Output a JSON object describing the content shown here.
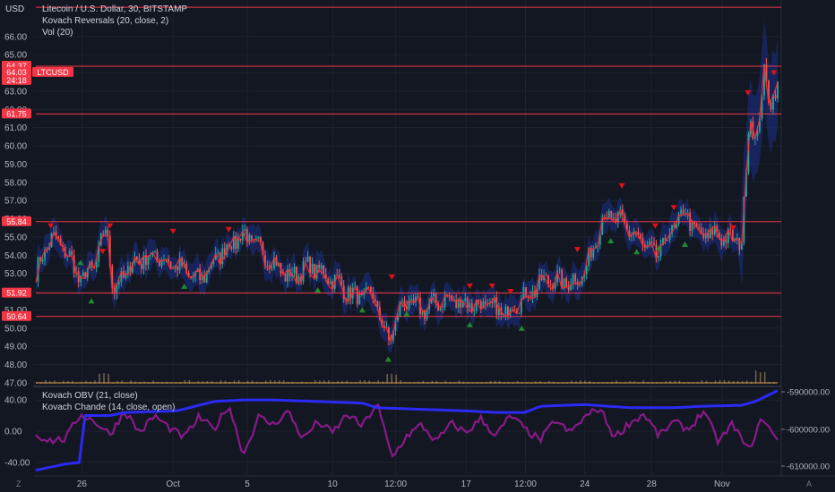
{
  "header": {
    "currency": "USD",
    "title": "Litecoin / U.S. Dollar, 30, BITSTAMP",
    "indicator_1": "Kovach Reversals (20, close, 2)",
    "indicator_2": "Vol (20)",
    "panel_2_line_1": "Kovach OBV (21, close)",
    "panel_2_line_2": "Kovach Chande (14, close, open)"
  },
  "price_badges": [
    {
      "label": "64.37",
      "value": 64.37,
      "color": "#f23645"
    },
    {
      "label": "64.03",
      "sub": "24:18",
      "value": 64.03,
      "color": "#f23645"
    },
    {
      "label": "61.75",
      "value": 61.75,
      "color": "#f23645"
    },
    {
      "label": "55.84",
      "value": 55.84,
      "color": "#f23645"
    },
    {
      "label": "51.92",
      "value": 51.92,
      "color": "#f23645"
    },
    {
      "label": "50.64",
      "value": 50.64,
      "color": "#f23645"
    }
  ],
  "symbol_tag": "LTCUSD",
  "bottom_left": "Z",
  "bottom_right": "A",
  "chart_data": [
    {
      "type": "candlestick",
      "title": "Litecoin / U.S. Dollar, 30, BITSTAMP",
      "ylabel": "USD",
      "ylim": [
        46.8,
        68.0
      ],
      "y_ticks": [
        "66.00",
        "65.00",
        "64.00",
        "63.00",
        "62.00",
        "61.00",
        "60.00",
        "59.00",
        "58.00",
        "57.00",
        "56.00",
        "55.00",
        "54.00",
        "53.00",
        "52.00",
        "51.00",
        "50.00",
        "49.00",
        "48.00",
        "47.00"
      ],
      "x_tick_labels": [
        "26",
        "Oct",
        "5",
        "10",
        "12:00",
        "17",
        "12:00",
        "24",
        "28",
        "Nov"
      ],
      "horizontal_levels": [
        67.6,
        64.37,
        61.75,
        55.84,
        51.92,
        50.64
      ],
      "price_path": [
        [
          0,
          53.0
        ],
        [
          0.02,
          55.0
        ],
        [
          0.04,
          54.3
        ],
        [
          0.06,
          52.6
        ],
        [
          0.08,
          53.5
        ],
        [
          0.095,
          55.6
        ],
        [
          0.105,
          52.0
        ],
        [
          0.13,
          53.6
        ],
        [
          0.16,
          54.0
        ],
        [
          0.19,
          53.4
        ],
        [
          0.22,
          52.6
        ],
        [
          0.25,
          54.2
        ],
        [
          0.28,
          55.2
        ],
        [
          0.31,
          54.0
        ],
        [
          0.34,
          52.8
        ],
        [
          0.37,
          53.4
        ],
        [
          0.4,
          52.7
        ],
        [
          0.43,
          51.7
        ],
        [
          0.455,
          51.8
        ],
        [
          0.475,
          49.2
        ],
        [
          0.495,
          51.5
        ],
        [
          0.52,
          51.0
        ],
        [
          0.55,
          51.6
        ],
        [
          0.58,
          51.4
        ],
        [
          0.61,
          51.2
        ],
        [
          0.63,
          50.8
        ],
        [
          0.66,
          51.8
        ],
        [
          0.69,
          52.7
        ],
        [
          0.72,
          52.5
        ],
        [
          0.74,
          53.0
        ],
        [
          0.765,
          56.2
        ],
        [
          0.79,
          55.8
        ],
        [
          0.815,
          54.8
        ],
        [
          0.835,
          53.9
        ],
        [
          0.855,
          55.2
        ],
        [
          0.875,
          56.4
        ],
        [
          0.895,
          55.0
        ],
        [
          0.915,
          55.2
        ],
        [
          0.94,
          54.8
        ],
        [
          0.952,
          54.9
        ],
        [
          0.962,
          61.8
        ],
        [
          0.972,
          60.2
        ],
        [
          0.982,
          64.0
        ],
        [
          0.99,
          62.5
        ],
        [
          1.0,
          63.0
        ]
      ],
      "reversal_markers": {
        "down": [
          [
            0.02,
            55.6
          ],
          [
            0.09,
            54.2
          ],
          [
            0.1,
            55.6
          ],
          [
            0.185,
            55.3
          ],
          [
            0.26,
            55.4
          ],
          [
            0.48,
            52.8
          ],
          [
            0.585,
            52.3
          ],
          [
            0.615,
            52.3
          ],
          [
            0.64,
            52.0
          ],
          [
            0.73,
            54.3
          ],
          [
            0.79,
            57.8
          ],
          [
            0.835,
            55.6
          ],
          [
            0.86,
            56.6
          ],
          [
            0.94,
            55.5
          ],
          [
            0.96,
            62.9
          ],
          [
            0.995,
            64.0
          ]
        ],
        "up": [
          [
            0.06,
            53.6
          ],
          [
            0.075,
            51.5
          ],
          [
            0.2,
            52.3
          ],
          [
            0.38,
            52.1
          ],
          [
            0.44,
            51.0
          ],
          [
            0.475,
            48.3
          ],
          [
            0.5,
            50.8
          ],
          [
            0.585,
            50.2
          ],
          [
            0.655,
            50.0
          ],
          [
            0.775,
            54.8
          ],
          [
            0.81,
            54.2
          ],
          [
            0.84,
            54.4
          ],
          [
            0.875,
            54.6
          ]
        ]
      },
      "volume_ylim": [
        0,
        1
      ],
      "volume_spikes": [
        [
          0.09,
          0.7
        ],
        [
          0.48,
          0.6
        ],
        [
          0.975,
          0.8
        ]
      ]
    },
    {
      "type": "line",
      "title": "Kovach OBV (21, close) / Kovach Chande (14, close, open)",
      "ylim": [
        -55,
        55
      ],
      "y_ticks_left": [
        "40.00",
        "0.00",
        "-40.00"
      ],
      "y_ticks_right": [
        "-590000.00",
        "-600000.00",
        "-610000.00"
      ],
      "x_tick_labels": [
        "26",
        "Oct",
        "5",
        "10",
        "12:00",
        "17",
        "12:00",
        "24",
        "28",
        "Nov"
      ],
      "series": [
        {
          "name": "Kovach OBV (21, close)",
          "color": "#2b2bff",
          "values": [
            [
              0,
              -50
            ],
            [
              0.04,
              -42
            ],
            [
              0.06,
              -40
            ],
            [
              0.065,
              20
            ],
            [
              0.1,
              20
            ],
            [
              0.12,
              24
            ],
            [
              0.19,
              26
            ],
            [
              0.24,
              38
            ],
            [
              0.28,
              40
            ],
            [
              0.32,
              40
            ],
            [
              0.38,
              38
            ],
            [
              0.44,
              36
            ],
            [
              0.46,
              30
            ],
            [
              0.52,
              28
            ],
            [
              0.58,
              26
            ],
            [
              0.62,
              24
            ],
            [
              0.66,
              24
            ],
            [
              0.68,
              32
            ],
            [
              0.74,
              34
            ],
            [
              0.8,
              30
            ],
            [
              0.86,
              30
            ],
            [
              0.9,
              32
            ],
            [
              0.95,
              33
            ],
            [
              0.97,
              38
            ],
            [
              1.0,
              52
            ]
          ]
        },
        {
          "name": "Kovach Chande (14, close, open)",
          "color": "#8e1a8e",
          "values": [
            [
              0,
              -5
            ],
            [
              0.02,
              -12
            ],
            [
              0.04,
              -10
            ],
            [
              0.06,
              22
            ],
            [
              0.08,
              12
            ],
            [
              0.1,
              -4
            ],
            [
              0.12,
              26
            ],
            [
              0.14,
              -2
            ],
            [
              0.16,
              20
            ],
            [
              0.18,
              4
            ],
            [
              0.2,
              -8
            ],
            [
              0.22,
              18
            ],
            [
              0.24,
              2
            ],
            [
              0.26,
              34
            ],
            [
              0.28,
              -30
            ],
            [
              0.3,
              18
            ],
            [
              0.32,
              8
            ],
            [
              0.34,
              26
            ],
            [
              0.36,
              -10
            ],
            [
              0.38,
              12
            ],
            [
              0.4,
              -2
            ],
            [
              0.42,
              22
            ],
            [
              0.44,
              6
            ],
            [
              0.46,
              36
            ],
            [
              0.48,
              -34
            ],
            [
              0.5,
              -6
            ],
            [
              0.52,
              8
            ],
            [
              0.54,
              -14
            ],
            [
              0.56,
              10
            ],
            [
              0.58,
              -2
            ],
            [
              0.6,
              16
            ],
            [
              0.62,
              -6
            ],
            [
              0.64,
              20
            ],
            [
              0.66,
              2
            ],
            [
              0.68,
              -12
            ],
            [
              0.7,
              14
            ],
            [
              0.72,
              -2
            ],
            [
              0.74,
              18
            ],
            [
              0.76,
              30
            ],
            [
              0.78,
              -8
            ],
            [
              0.8,
              10
            ],
            [
              0.82,
              22
            ],
            [
              0.84,
              -6
            ],
            [
              0.86,
              12
            ],
            [
              0.88,
              2
            ],
            [
              0.9,
              26
            ],
            [
              0.92,
              -14
            ],
            [
              0.94,
              10
            ],
            [
              0.96,
              -26
            ],
            [
              0.98,
              18
            ],
            [
              1.0,
              -14
            ]
          ]
        }
      ]
    }
  ]
}
